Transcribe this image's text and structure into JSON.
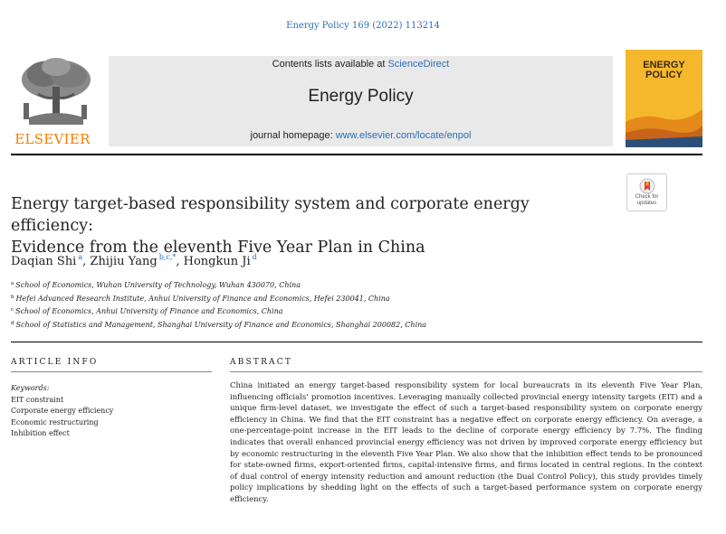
{
  "header": {
    "citation": "Energy Policy 169 (2022) 113214",
    "publisher": "ELSEVIER",
    "contents_prefix": "Contents lists available at ",
    "contents_link": "ScienceDirect",
    "journal_title": "Energy Policy",
    "homepage_prefix": "journal homepage: ",
    "homepage_link": "www.elsevier.com/locate/enpol",
    "cover_title_line1": "ENERGY",
    "cover_title_line2": "POLICY",
    "check_updates_line1": "Check for",
    "check_updates_line2": "updates"
  },
  "article": {
    "title_line1": "Energy target-based responsibility system and corporate energy efficiency:",
    "title_line2": "Evidence from the eleventh Five Year Plan in China",
    "authors": [
      {
        "name": "Daqian Shi",
        "sup": "a"
      },
      {
        "name": "Zhijiu Yang",
        "sup": "b,c,*"
      },
      {
        "name": "Hongkun Ji",
        "sup": "d"
      }
    ],
    "affiliations": [
      {
        "mark": "a",
        "text": "School of Economics, Wuhan University of Technology, Wuhan 430070, China"
      },
      {
        "mark": "b",
        "text": "Hefei Advanced Research Institute, Anhui University of Finance and Economics, Hefei 230041, China"
      },
      {
        "mark": "c",
        "text": "School of Economics, Anhui University of Finance and Economics, China"
      },
      {
        "mark": "d",
        "text": "School of Statistics and Management, Shanghai University of Finance and Economics, Shanghai 200082, China"
      }
    ]
  },
  "article_info": {
    "heading": "ARTICLE INFO",
    "keywords_label": "Keywords:",
    "keywords": [
      "EIT constraint",
      "Corporate energy efficiency",
      "Economic restructuring",
      "Inhibition effect"
    ]
  },
  "abstract": {
    "heading": "ABSTRACT",
    "text": "China initiated an energy target-based responsibility system for local bureaucrats in its eleventh Five Year Plan, influencing officials’ promotion incentives. Leveraging manually collected provincial energy intensity targets (EIT) and a unique firm-level dataset, we investigate the effect of such a target-based responsibility system on corporate energy efficiency in China. We find that the EIT constraint has a negative effect on corporate energy efficiency. On average, a one-percentage-point increase in the EIT leads to the decline of corporate energy efficiency by 7.7%. The finding indicates that overall enhanced provincial energy efficiency was not driven by improved corporate energy efficiency but by economic restructuring in the eleventh Five Year Plan. We also show that the inhibition effect tends to be pronounced for state-owned firms, export-oriented firms, capital-intensive firms, and firms located in central regions. In the context of dual control of energy intensity reduction and amount reduction (the Dual Control Policy), this study provides timely policy implications by shedding light on the effects of such a target-based performance system on corporate energy efficiency."
  },
  "colors": {
    "link_blue": "#2a6ebb",
    "elsevier_orange": "#f27f00",
    "header_gray": "#e9e9e9",
    "cover_yellow": "#f5b82d"
  }
}
